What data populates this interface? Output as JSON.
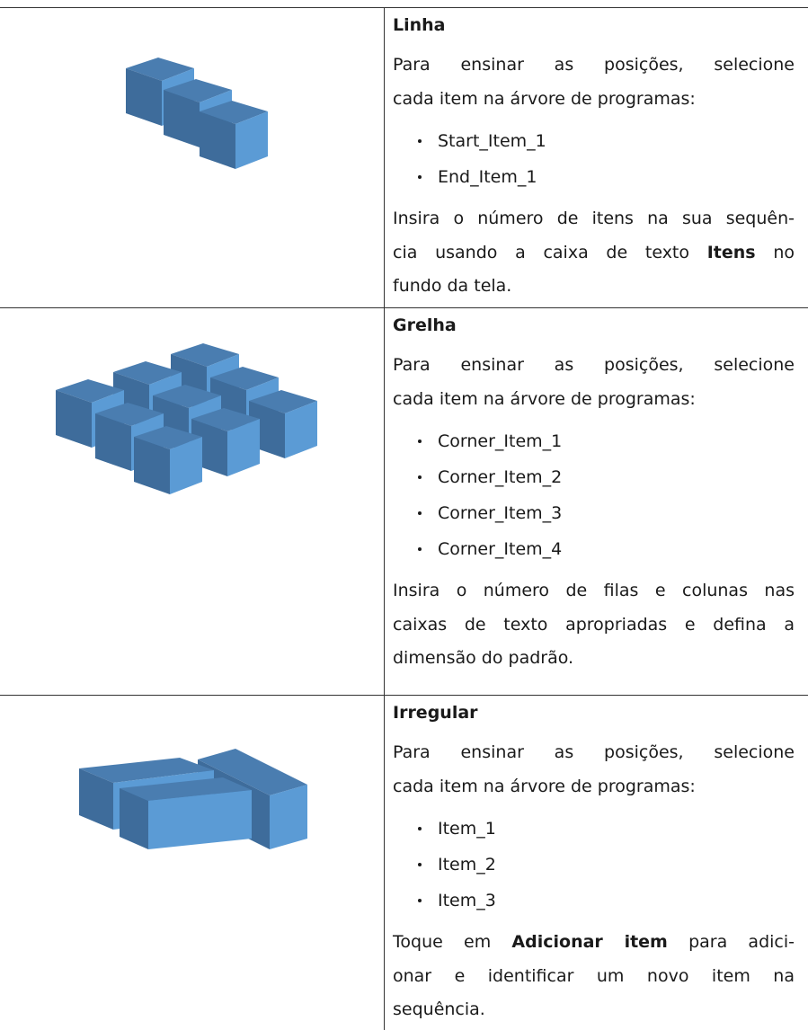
{
  "rows": [
    {
      "title": "Linha",
      "intro": [
        [
          {
            "text": "Para ensinar as posições, selecione"
          }
        ],
        [
          {
            "text": "cada item na árvore de programas:"
          }
        ]
      ],
      "items": [
        "Start_Item_1",
        "End_Item_1"
      ],
      "outro": [
        [
          {
            "text": "Insira o número de itens na sua sequên-"
          }
        ],
        [
          {
            "text": "cia usando a caixa de texto "
          },
          {
            "strong": "Itens"
          },
          {
            "text": " no"
          }
        ],
        [
          {
            "text": "fundo da tela."
          }
        ]
      ]
    },
    {
      "title": "Grelha",
      "intro": [
        [
          {
            "text": "Para ensinar as posições, selecione"
          }
        ],
        [
          {
            "text": "cada item na árvore de programas:"
          }
        ]
      ],
      "items": [
        "Corner_Item_1",
        "Corner_Item_2",
        "Corner_Item_3",
        "Corner_Item_4"
      ],
      "outro": [
        [
          {
            "text": "Insira o número de filas e colunas nas"
          }
        ],
        [
          {
            "text": "caixas de texto apropriadas e defina a"
          }
        ],
        [
          {
            "text": "dimensão do padrão."
          }
        ]
      ]
    },
    {
      "title": "Irregular",
      "intro": [
        [
          {
            "text": "Para ensinar as posições, selecione"
          }
        ],
        [
          {
            "text": "cada item na árvore de programas:"
          }
        ]
      ],
      "items": [
        "Item_1",
        "Item_2",
        "Item_3"
      ],
      "outro": [
        [
          {
            "text": "Toque em "
          },
          {
            "strong": "Adicionar item"
          },
          {
            "text": " para adici-"
          }
        ],
        [
          {
            "text": "onar e identificar um novo item na"
          }
        ],
        [
          {
            "text": "sequência."
          }
        ]
      ]
    }
  ]
}
